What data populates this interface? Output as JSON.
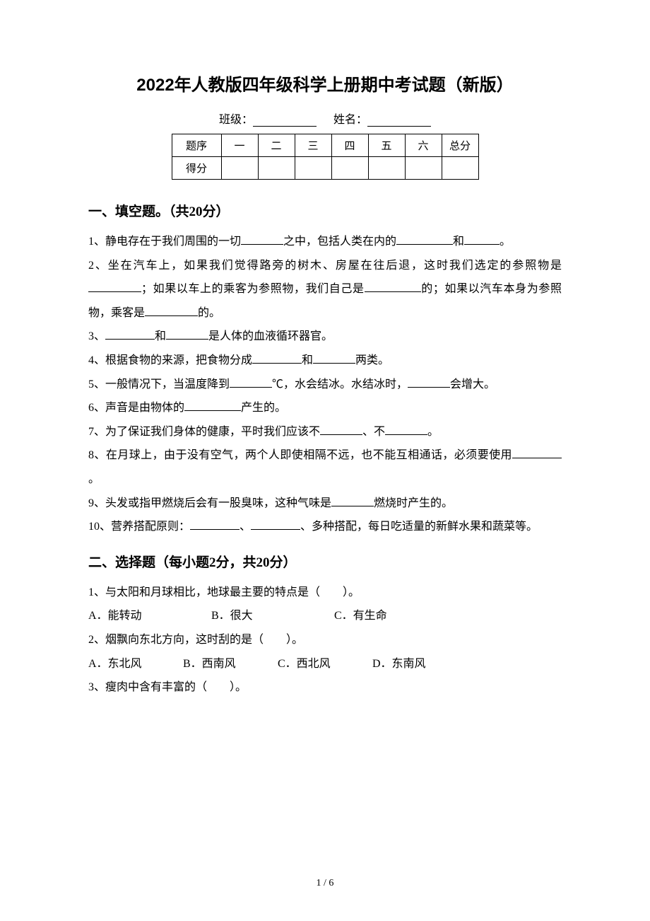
{
  "title": "2022年人教版四年级科学上册期中考试题（新版）",
  "info": {
    "class_label": "班级：",
    "name_label": "姓名："
  },
  "score_table": {
    "row_label": "题序",
    "score_label": "得分",
    "cols": [
      "一",
      "二",
      "三",
      "四",
      "五",
      "六",
      "总分"
    ]
  },
  "section1": {
    "title": "一、填空题。（共20分）",
    "q1_a": "1、静电存在于我们周围的一切",
    "q1_b": "之中，包括人类在内的",
    "q1_c": "和",
    "q1_d": "。",
    "q2_a": "2、坐在汽车上，如果我们觉得路旁的树木、房屋在往后退，这时我们选定的参照物是",
    "q2_b": "；如果以车上的乘客为参照物，我们自己是",
    "q2_c": "的；如果以汽车本身为参照物，乘客是",
    "q2_d": "的。",
    "q3_a": "3、",
    "q3_b": "和",
    "q3_c": "是人体的血液循环器官。",
    "q4_a": "4、根据食物的来源，把食物分成",
    "q4_b": "和",
    "q4_c": "两类。",
    "q5_a": "5、一般情况下，当温度降到",
    "q5_b": "℃，水会结冰。水结冰时，",
    "q5_c": "会增大。",
    "q6_a": "6、声音是由物体的",
    "q6_b": "产生的。",
    "q7_a": "7、为了保证我们身体的健康，平时我们应该不",
    "q7_b": "、不",
    "q7_c": "。",
    "q8_a": "8、在月球上，由于没有空气，两个人即使相隔不远，也不能互相通话，必须要使用",
    "q8_b": "。",
    "q9_a": "9、头发或指甲燃烧后会有一股臭味，这种气味是",
    "q9_b": "燃烧时产生的。",
    "q10_a": "10、营养搭配原则：",
    "q10_b": "、",
    "q10_c": "、多种搭配，每日吃适量的新鲜水果和蔬菜等。"
  },
  "section2": {
    "title": "二、选择题（每小题2分，共20分）",
    "q1": "1、与太阳和月球相比，地球最主要的特点是（　　）。",
    "q1_opts": {
      "a": "A．能转动",
      "b": "B．很大",
      "c": "C．有生命"
    },
    "q2": "2、烟飘向东北方向，这时刮的是（　　）。",
    "q2_opts": {
      "a": "A．东北风",
      "b": "B．西南风",
      "c": "C．西北风",
      "d": "D．东南风"
    },
    "q3": "3、瘦肉中含有丰富的（　　）。"
  },
  "page_number": "1 / 6"
}
